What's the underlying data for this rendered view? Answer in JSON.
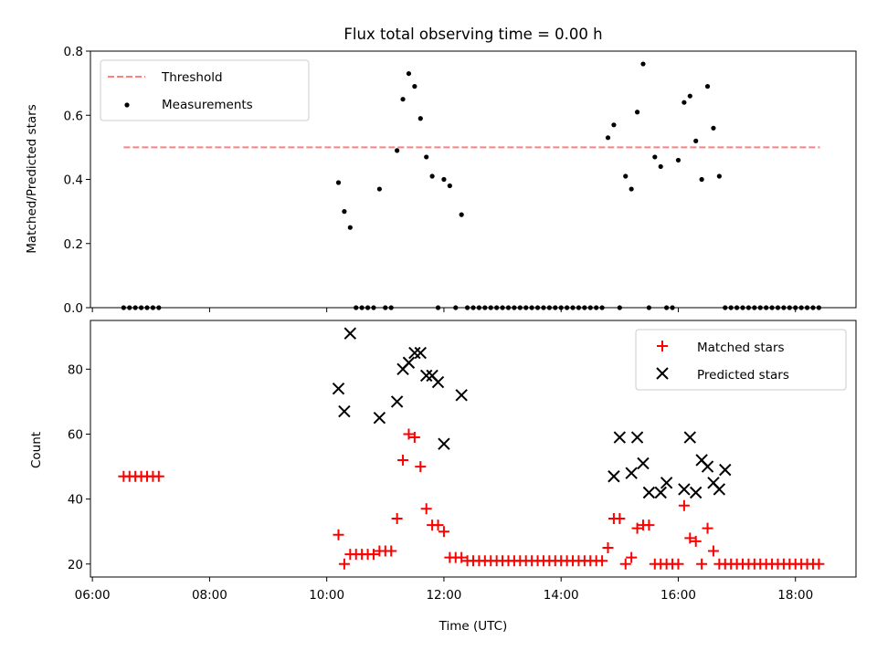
{
  "chart_data": [
    {
      "type": "scatter",
      "title": "Flux total observing time = 0.00 h",
      "xlabel": "",
      "ylabel": "Matched/Predicted stars",
      "ylim": [
        0,
        0.8
      ],
      "yticks": [
        "0.0",
        "0.2",
        "0.4",
        "0.6",
        "0.8"
      ],
      "xlim": [
        "05:58",
        "19:02"
      ],
      "xticks": [
        "06:00",
        "08:00",
        "10:00",
        "12:00",
        "14:00",
        "16:00",
        "18:00"
      ],
      "grid": false,
      "legend_position": "upper-left",
      "threshold": {
        "name": "Threshold",
        "value": 0.5,
        "x_start": "06:32",
        "x_end": "18:25",
        "color": "#ff7f7f"
      },
      "series": [
        {
          "name": "Measurements",
          "color": "#000000",
          "x": [
            "06:32",
            "06:38",
            "06:44",
            "06:50",
            "06:56",
            "07:02",
            "07:08",
            "10:12",
            "10:18",
            "10:24",
            "10:30",
            "10:36",
            "10:42",
            "10:48",
            "10:54",
            "11:00",
            "11:06",
            "11:12",
            "11:18",
            "11:24",
            "11:30",
            "11:36",
            "11:42",
            "11:48",
            "11:54",
            "12:00",
            "12:06",
            "12:12",
            "12:18",
            "12:24",
            "12:30",
            "12:36",
            "12:42",
            "12:48",
            "12:54",
            "13:00",
            "13:06",
            "13:12",
            "13:18",
            "13:24",
            "13:30",
            "13:36",
            "13:42",
            "13:48",
            "13:54",
            "14:00",
            "14:06",
            "14:12",
            "14:18",
            "14:24",
            "14:30",
            "14:36",
            "14:42",
            "14:48",
            "14:54",
            "15:00",
            "15:06",
            "15:12",
            "15:18",
            "15:24",
            "15:30",
            "15:36",
            "15:42",
            "15:48",
            "15:54",
            "16:00",
            "16:06",
            "16:12",
            "16:18",
            "16:24",
            "16:30",
            "16:36",
            "16:42",
            "16:48",
            "16:54",
            "17:00",
            "17:06",
            "17:12",
            "17:18",
            "17:24",
            "17:30",
            "17:36",
            "17:42",
            "17:48",
            "17:54",
            "18:00",
            "18:06",
            "18:12",
            "18:18",
            "18:24"
          ],
          "y": [
            0,
            0,
            0,
            0,
            0,
            0,
            0,
            0.39,
            0.3,
            0.25,
            0,
            0,
            0,
            0,
            0.37,
            0,
            0,
            0.49,
            0.65,
            0.73,
            0.69,
            0.59,
            0.47,
            0.41,
            0,
            0.4,
            0.38,
            0,
            0.29,
            0,
            0,
            0,
            0,
            0,
            0,
            0,
            0,
            0,
            0,
            0,
            0,
            0,
            0,
            0,
            0,
            0,
            0,
            0,
            0,
            0,
            0,
            0,
            0,
            0.53,
            0.57,
            0,
            0.41,
            0.37,
            0.61,
            0.76,
            0,
            0.47,
            0.44,
            0,
            0,
            0.46,
            0.64,
            0.66,
            0.52,
            0.4,
            0.69,
            0.56,
            0.41,
            0,
            0,
            0,
            0,
            0,
            0,
            0,
            0,
            0,
            0,
            0,
            0,
            0,
            0,
            0,
            0,
            0
          ]
        }
      ]
    },
    {
      "type": "scatter",
      "title": "",
      "xlabel": "Time (UTC)",
      "ylabel": "Count",
      "ylim": [
        16,
        95
      ],
      "yticks": [
        "20",
        "40",
        "60",
        "80"
      ],
      "xlim": [
        "05:58",
        "19:02"
      ],
      "xticks": [
        "06:00",
        "08:00",
        "10:00",
        "12:00",
        "14:00",
        "16:00",
        "18:00"
      ],
      "grid": false,
      "legend_position": "upper-right",
      "series": [
        {
          "name": "Matched stars",
          "marker": "plus",
          "color": "#ff0000",
          "x": [
            "06:32",
            "06:38",
            "06:44",
            "06:50",
            "06:56",
            "07:02",
            "07:08",
            "10:12",
            "10:18",
            "10:24",
            "10:30",
            "10:36",
            "10:42",
            "10:48",
            "10:54",
            "11:00",
            "11:06",
            "11:12",
            "11:18",
            "11:24",
            "11:30",
            "11:36",
            "11:42",
            "11:48",
            "11:54",
            "12:00",
            "12:06",
            "12:12",
            "12:18",
            "12:24",
            "12:30",
            "12:36",
            "12:42",
            "12:48",
            "12:54",
            "13:00",
            "13:06",
            "13:12",
            "13:18",
            "13:24",
            "13:30",
            "13:36",
            "13:42",
            "13:48",
            "13:54",
            "14:00",
            "14:06",
            "14:12",
            "14:18",
            "14:24",
            "14:30",
            "14:36",
            "14:42",
            "14:48",
            "14:54",
            "15:00",
            "15:06",
            "15:12",
            "15:18",
            "15:24",
            "15:30",
            "15:36",
            "15:42",
            "15:48",
            "15:54",
            "16:00",
            "16:06",
            "16:12",
            "16:18",
            "16:24",
            "16:30",
            "16:36",
            "16:42",
            "16:48",
            "16:54",
            "17:00",
            "17:06",
            "17:12",
            "17:18",
            "17:24",
            "17:30",
            "17:36",
            "17:42",
            "17:48",
            "17:54",
            "18:00",
            "18:06",
            "18:12",
            "18:18",
            "18:24"
          ],
          "y": [
            47,
            47,
            47,
            47,
            47,
            47,
            47,
            29,
            20,
            23,
            23,
            23,
            23,
            23,
            24,
            24,
            24,
            34,
            52,
            60,
            59,
            50,
            37,
            32,
            32,
            30,
            22,
            22,
            22,
            21,
            21,
            21,
            21,
            21,
            21,
            21,
            21,
            21,
            21,
            21,
            21,
            21,
            21,
            21,
            21,
            21,
            21,
            21,
            21,
            21,
            21,
            21,
            21,
            25,
            34,
            34,
            20,
            22,
            31,
            32,
            32,
            20,
            20,
            20,
            20,
            20,
            38,
            28,
            27,
            20,
            31,
            24,
            20,
            20,
            20,
            20,
            20,
            20,
            20,
            20,
            20,
            20,
            20,
            20,
            20,
            20,
            20,
            20,
            20,
            20
          ]
        },
        {
          "name": "Predicted stars",
          "marker": "x",
          "color": "#000000",
          "x": [
            "10:12",
            "10:18",
            "10:24",
            "10:54",
            "11:12",
            "11:18",
            "11:24",
            "11:30",
            "11:36",
            "11:42",
            "11:48",
            "11:54",
            "12:00",
            "12:18",
            "14:54",
            "15:00",
            "15:12",
            "15:18",
            "15:24",
            "15:30",
            "15:42",
            "15:48",
            "16:06",
            "16:12",
            "16:18",
            "16:24",
            "16:30",
            "16:36",
            "16:42",
            "16:48"
          ],
          "y": [
            74,
            67,
            91,
            65,
            70,
            80,
            82,
            85,
            85,
            78,
            78,
            76,
            57,
            72,
            47,
            59,
            48,
            59,
            51,
            42,
            42,
            45,
            43,
            59,
            42,
            52,
            50,
            45,
            43,
            49
          ]
        }
      ]
    }
  ]
}
